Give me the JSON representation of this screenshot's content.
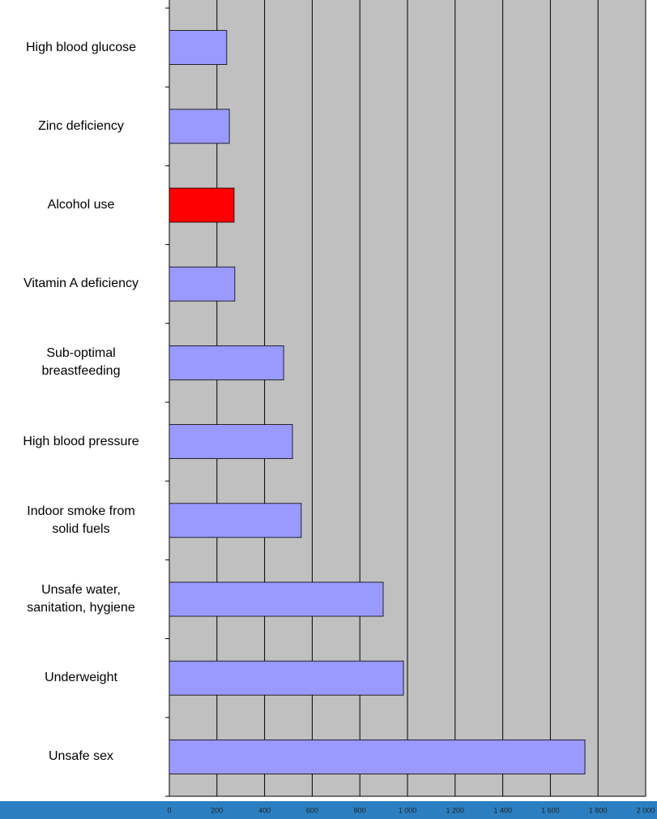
{
  "chart_data": {
    "type": "barh",
    "categories": [
      "High blood glucose",
      "Zinc deficiency",
      "Alcohol use",
      "Vitamin A deficiency",
      "Sub-optimal\nbreastfeeding",
      "High blood pressure",
      "Indoor smoke from\nsolid fuels",
      "Unsafe water,\nsanitation, hygiene",
      "Underweight",
      "Unsafe sex"
    ],
    "values": [
      241,
      252,
      272,
      275,
      480,
      517,
      554,
      898,
      983,
      1745
    ],
    "colors": [
      "#9999ff",
      "#9999ff",
      "#ff0000",
      "#9999ff",
      "#9999ff",
      "#9999ff",
      "#9999ff",
      "#9999ff",
      "#9999ff",
      "#9999ff"
    ],
    "xlim": [
      0,
      2000
    ],
    "xticks": [
      0,
      200,
      400,
      600,
      800,
      {
        "value": 1000,
        "label": "1 000"
      },
      {
        "value": 1200,
        "label": "1 200"
      },
      {
        "value": 1400,
        "label": "1 400"
      },
      {
        "value": 1600,
        "label": "1 600"
      },
      {
        "value": 1800,
        "label": "1 800"
      },
      {
        "value": 2000,
        "label": "2 000"
      }
    ],
    "grid": true
  }
}
